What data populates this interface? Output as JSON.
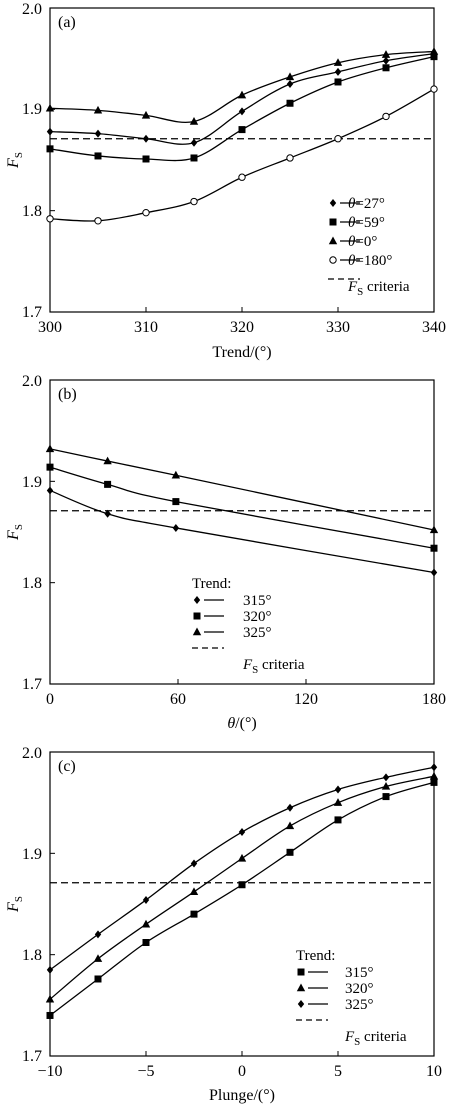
{
  "chart_data": [
    {
      "type": "line",
      "panel_label": "(a)",
      "xlabel": "Trend/(°)",
      "ylabel": "F_S",
      "xlim": [
        300,
        340
      ],
      "ylim": [
        1.7,
        2.0
      ],
      "xticks": [
        "300",
        "310",
        "320",
        "330",
        "340"
      ],
      "yticks": [
        "1.7",
        "1.8",
        "1.9",
        "2.0"
      ],
      "legend_position": "bottom-right",
      "criteria": {
        "label": "F_S criteria",
        "value": 1.871
      },
      "series": [
        {
          "name": "θ=27°",
          "marker": "diamond",
          "x": [
            300,
            305,
            310,
            315,
            320,
            325,
            330,
            335,
            340
          ],
          "values": [
            1.878,
            1.876,
            1.871,
            1.867,
            1.898,
            1.925,
            1.937,
            1.948,
            1.955
          ]
        },
        {
          "name": "θ=59°",
          "marker": "square",
          "x": [
            300,
            305,
            310,
            315,
            320,
            325,
            330,
            335,
            340
          ],
          "values": [
            1.861,
            1.854,
            1.851,
            1.852,
            1.88,
            1.906,
            1.927,
            1.941,
            1.952
          ]
        },
        {
          "name": "θ=0°",
          "marker": "triangle",
          "x": [
            300,
            305,
            310,
            315,
            320,
            325,
            330,
            335,
            340
          ],
          "values": [
            1.901,
            1.899,
            1.894,
            1.888,
            1.914,
            1.932,
            1.946,
            1.954,
            1.957
          ]
        },
        {
          "name": "θ=180°",
          "marker": "circle",
          "x": [
            300,
            305,
            310,
            315,
            320,
            325,
            330,
            335,
            340
          ],
          "values": [
            1.792,
            1.79,
            1.798,
            1.809,
            1.833,
            1.852,
            1.871,
            1.893,
            1.92
          ]
        }
      ]
    },
    {
      "type": "line",
      "panel_label": "(b)",
      "xlabel": "θ/(°)",
      "ylabel": "F_S",
      "xlim": [
        0,
        180
      ],
      "ylim": [
        1.7,
        2.0
      ],
      "xticks": [
        "0",
        "60",
        "120",
        "180"
      ],
      "yticks": [
        "1.7",
        "1.8",
        "1.9",
        "2.0"
      ],
      "legend_position": "bottom-left",
      "legend_title": "Trend:",
      "criteria": {
        "label": "F_S criteria",
        "value": 1.871
      },
      "series": [
        {
          "name": "315°",
          "marker": "diamond",
          "x": [
            0,
            27,
            59,
            180
          ],
          "values": [
            1.891,
            1.868,
            1.854,
            1.81
          ]
        },
        {
          "name": "320°",
          "marker": "square",
          "x": [
            0,
            27,
            59,
            180
          ],
          "values": [
            1.914,
            1.897,
            1.88,
            1.834
          ]
        },
        {
          "name": "325°",
          "marker": "triangle",
          "x": [
            0,
            27,
            59,
            180
          ],
          "values": [
            1.932,
            1.92,
            1.906,
            1.852
          ]
        }
      ]
    },
    {
      "type": "line",
      "panel_label": "(c)",
      "xlabel": "Plunge/(°)",
      "ylabel": "F_S",
      "xlim": [
        -10,
        10
      ],
      "ylim": [
        1.7,
        2.0
      ],
      "xticks": [
        "−10",
        "−5",
        "0",
        "5",
        "10"
      ],
      "xtick_positions": [
        -10,
        -5,
        0,
        5,
        10
      ],
      "yticks": [
        "1.7",
        "1.8",
        "1.9",
        "2.0"
      ],
      "legend_position": "bottom-right",
      "legend_title": "Trend:",
      "criteria": {
        "label": "F_S criteria",
        "value": 1.871
      },
      "series": [
        {
          "name": "315°",
          "marker": "square",
          "x": [
            -10,
            -7.5,
            -5,
            -2.5,
            0,
            2.5,
            5,
            7.5,
            10
          ],
          "values": [
            1.74,
            1.776,
            1.812,
            1.84,
            1.869,
            1.901,
            1.933,
            1.956,
            1.97
          ]
        },
        {
          "name": "320°",
          "marker": "triangle",
          "x": [
            -10,
            -7.5,
            -5,
            -2.5,
            0,
            2.5,
            5,
            7.5,
            10
          ],
          "values": [
            1.756,
            1.796,
            1.83,
            1.862,
            1.895,
            1.927,
            1.95,
            1.966,
            1.976
          ]
        },
        {
          "name": "325°",
          "marker": "diamond",
          "x": [
            -10,
            -7.5,
            -5,
            -2.5,
            0,
            2.5,
            5,
            7.5,
            10
          ],
          "values": [
            1.785,
            1.82,
            1.854,
            1.89,
            1.921,
            1.945,
            1.963,
            1.975,
            1.985
          ]
        }
      ]
    }
  ]
}
